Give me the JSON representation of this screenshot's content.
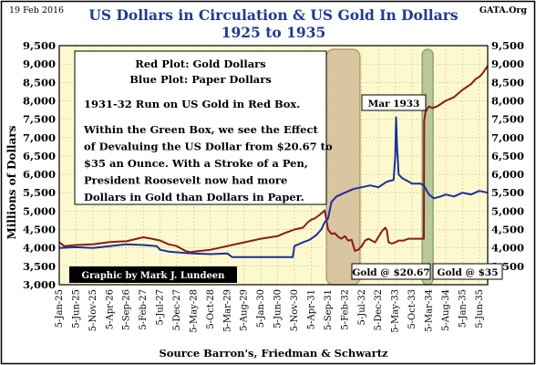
{
  "header": {
    "date": "19 Feb 2016",
    "source_tag": "GATA.Org"
  },
  "chart_data": {
    "type": "line",
    "title": "US Dollars in Circulation & US Gold In Dollars",
    "subtitle": "1925 to 1935",
    "ylabel": "Millions of Dollars",
    "xlabel": "Source Barron's, Friedman & Schwartz",
    "ylim": [
      3000,
      9500
    ],
    "yticks": [
      3000,
      3500,
      4000,
      4500,
      5000,
      5500,
      6000,
      6500,
      7000,
      7500,
      8000,
      8500,
      9000,
      9500
    ],
    "yticks_right": [
      3500,
      4000,
      4500,
      5000,
      5500,
      6000,
      6500,
      7000,
      7500,
      8000,
      8500,
      9000,
      9500
    ],
    "x_categories": [
      "5-Jan-25",
      "5-Jun-25",
      "5-Nov-25",
      "5-Apr-26",
      "5-Sep-26",
      "5-Feb-27",
      "5-Jul-27",
      "5-Dec-27",
      "5-May-28",
      "5-Oct-28",
      "5-Mar-29",
      "5-Aug-29",
      "5-Jan-30",
      "5-Jun-30",
      "5-Nov-30",
      "5-Apr-31",
      "5-Sep-31",
      "5-Feb-32",
      "5-Jul-32",
      "5-Dec-32",
      "5-May-33",
      "5-Oct-33",
      "5-Mar-34",
      "5-Aug-34",
      "5-Jan-35",
      "5-Jun-35"
    ],
    "grid": true,
    "plot_background": "#fdf9cf",
    "series": [
      {
        "name": "Gold Dollars",
        "color": "#8b1a1a",
        "x": [
          0,
          0.3,
          1,
          2,
          3,
          4,
          5,
          5.5,
          6,
          6.5,
          7,
          7.5,
          7.8,
          8,
          9,
          10,
          11,
          12,
          13,
          13.4,
          14,
          14.5,
          14.8,
          15,
          15.2,
          15.5,
          15.8,
          16,
          16.2,
          16.4,
          16.6,
          16.8,
          17.0,
          17.2,
          17.4,
          17.6,
          17.8,
          18.0,
          18.2,
          18.4,
          18.6,
          18.8,
          19,
          19.2,
          19.4,
          19.5,
          19.6,
          19.8,
          20,
          20.2,
          20.5,
          20.8,
          21,
          21.3,
          21.5,
          21.7,
          21.72,
          21.8,
          22,
          22.2,
          22.5,
          23,
          23.5,
          24,
          24.5,
          24.8,
          25,
          25.2,
          25.5
        ],
        "values": [
          4150,
          4050,
          4080,
          4100,
          4160,
          4180,
          4290,
          4250,
          4200,
          4100,
          4050,
          3920,
          3880,
          3900,
          3950,
          4050,
          4150,
          4250,
          4320,
          4400,
          4500,
          4550,
          4700,
          4770,
          4800,
          4900,
          5020,
          4500,
          4380,
          4400,
          4300,
          4250,
          4320,
          4200,
          4220,
          3920,
          3950,
          4050,
          4200,
          4250,
          4200,
          4150,
          4300,
          4450,
          4550,
          4470,
          4150,
          4120,
          4150,
          4200,
          4200,
          4250,
          4250,
          4250,
          4250,
          4250,
          7450,
          7700,
          7850,
          7800,
          7850,
          8000,
          8100,
          8300,
          8450,
          8600,
          8650,
          8750,
          8950
        ]
      },
      {
        "name": "Paper Dollars",
        "color": "#1a2f9c",
        "x": [
          0,
          1,
          2,
          3,
          4,
          5,
          5.8,
          6,
          6.5,
          7,
          7.5,
          8,
          9,
          10,
          10.3,
          11,
          12,
          13,
          13.9,
          14,
          14.5,
          14.8,
          15,
          15.3,
          15.6,
          15.8,
          16,
          16.2,
          16.5,
          17,
          17.5,
          18,
          18.5,
          19,
          19.5,
          19.9,
          20.0,
          20.05,
          20.1,
          20.2,
          20.4,
          20.6,
          20.8,
          21,
          21.3,
          21.5,
          21.7,
          22,
          22.3,
          22.7,
          23,
          23.5,
          24,
          24.5,
          25,
          25.5
        ],
        "values": [
          4000,
          4020,
          4000,
          4050,
          4100,
          4080,
          4050,
          3950,
          3900,
          3880,
          3860,
          3850,
          3830,
          3850,
          3750,
          3750,
          3750,
          3750,
          3750,
          4050,
          4150,
          4200,
          4250,
          4350,
          4500,
          4700,
          4800,
          5250,
          5400,
          5500,
          5600,
          5650,
          5700,
          5650,
          5800,
          5850,
          6500,
          7550,
          6800,
          6000,
          5900,
          5850,
          5800,
          5750,
          5750,
          5750,
          5700,
          5450,
          5350,
          5400,
          5450,
          5400,
          5500,
          5450,
          5550,
          5500
        ]
      }
    ],
    "annotations": {
      "legend_red": "Red Plot: Gold Dollars",
      "legend_blue": "Blue Plot: Paper Dollars",
      "run_note": "1931-32 Run on US Gold in Red Box.",
      "devalue_note": "Within the Green Box, we see the Effect of Devaluing the US Dollar from $20.67 to $35 an Ounce.  With a Stroke of a Pen, President Roosevelt  now had more Dollars in Gold than Dollars in Paper.",
      "mar1933": "Mar 1933",
      "gold_2067": "Gold @ $20.67",
      "gold_35": "Gold @ $35",
      "credit": "Graphic by Mark J. Lundeen"
    },
    "red_box": {
      "x_start": 15.9,
      "x_end": 17.9
    },
    "green_box": {
      "x_start": 21.6,
      "x_end": 22.25
    },
    "colors": {
      "red_box_fill": "#d9c6a0",
      "red_box_edge": "#a89060",
      "green_box_fill": "#b9c89a",
      "green_box_edge": "#7f9460"
    }
  }
}
